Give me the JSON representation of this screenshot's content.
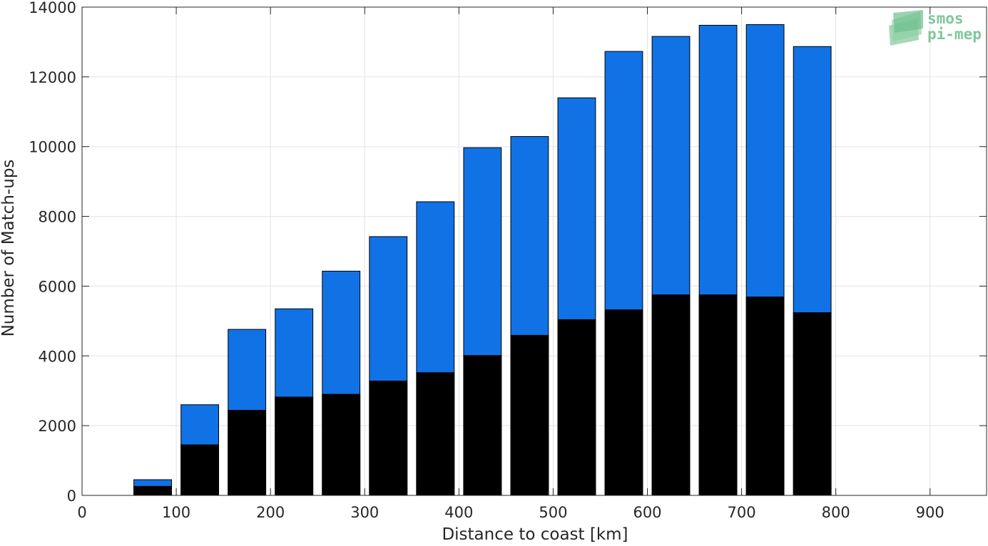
{
  "chart_data": {
    "type": "bar",
    "stacked": false,
    "overlaid": true,
    "xlabel": "Distance to coast [km]",
    "ylabel": "Number of Match-ups",
    "xlim": [
      0,
      960
    ],
    "ylim": [
      0,
      14000
    ],
    "xticks": [
      0,
      100,
      200,
      300,
      400,
      500,
      600,
      700,
      800,
      900
    ],
    "yticks": [
      0,
      2000,
      4000,
      6000,
      8000,
      10000,
      12000,
      14000
    ],
    "grid": true,
    "x": [
      75,
      125,
      175,
      225,
      275,
      325,
      375,
      425,
      475,
      525,
      575,
      625,
      675,
      725,
      775
    ],
    "series": [
      {
        "color": "#1172e6",
        "values": [
          450,
          2600,
          4760,
          5350,
          6430,
          7420,
          8420,
          9970,
          10290,
          11400,
          12730,
          13160,
          13480,
          13500,
          12870
        ]
      },
      {
        "color": "#000000",
        "values": [
          260,
          1450,
          2440,
          2820,
          2900,
          3280,
          3520,
          4010,
          4590,
          5040,
          5320,
          5750,
          5750,
          5690,
          5240
        ]
      }
    ]
  },
  "logo": {
    "line1": "smos",
    "line2": "pi-mep",
    "color": "#7fc79a"
  }
}
